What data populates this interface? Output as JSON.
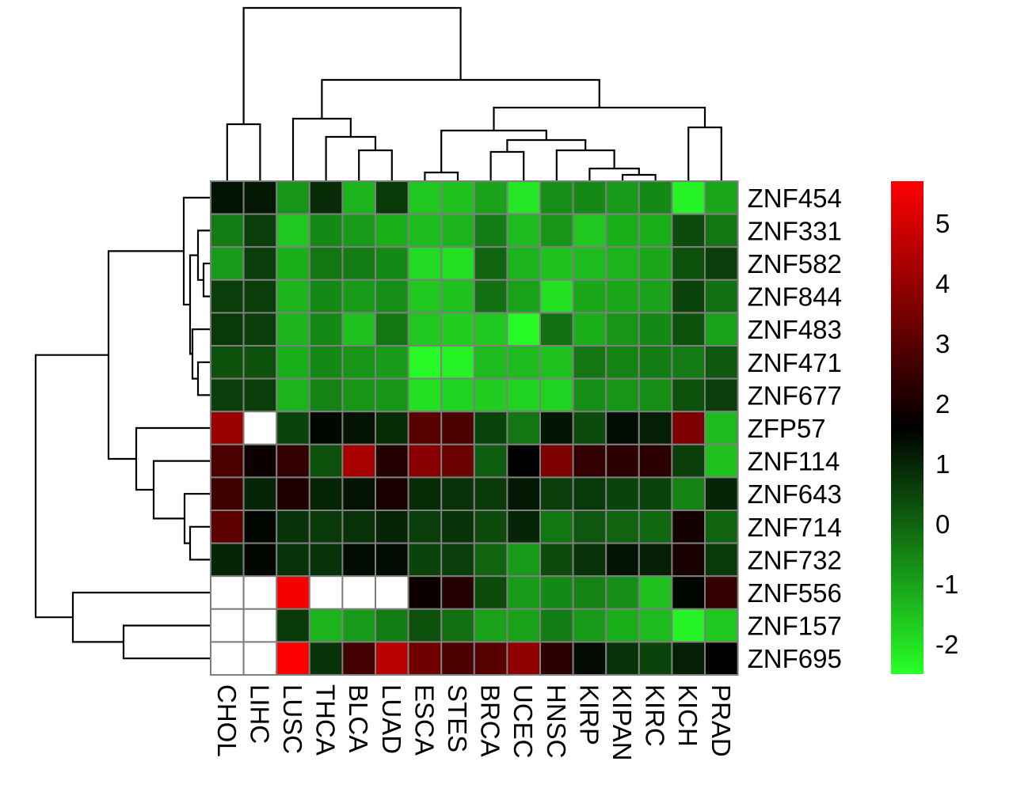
{
  "chart_data": {
    "type": "heatmap",
    "title": "",
    "xlabel": "",
    "ylabel": "",
    "columns": [
      "CHOL",
      "LIHC",
      "LUSC",
      "THCA",
      "BLCA",
      "LUAD",
      "ESCA",
      "STES",
      "BRCA",
      "UCEC",
      "HNSC",
      "KIRP",
      "KIPAN",
      "KIRC",
      "KICH",
      "PRAD"
    ],
    "rows": [
      "ZNF454",
      "ZNF331",
      "ZNF582",
      "ZNF844",
      "ZNF483",
      "ZNF471",
      "ZNF677",
      "ZFP57",
      "ZNF114",
      "ZNF643",
      "ZNF714",
      "ZNF732",
      "ZNF556",
      "ZNF157",
      "ZNF695"
    ],
    "values": [
      [
        1.3,
        1.2,
        -0.8,
        0.9,
        -1.3,
        0.7,
        -1.6,
        -1.5,
        -1.0,
        -2.1,
        -0.7,
        -0.6,
        -0.9,
        -0.6,
        -2.3,
        -1.1
      ],
      [
        -0.4,
        0.6,
        -1.6,
        -0.6,
        -0.9,
        -1.2,
        -1.4,
        -1.3,
        -0.4,
        -1.4,
        -0.8,
        -1.6,
        -1.2,
        -1.2,
        0.4,
        -0.3
      ],
      [
        -0.9,
        0.6,
        -1.2,
        -0.3,
        -0.4,
        -0.6,
        -1.9,
        -2.0,
        0.0,
        -1.3,
        -1.5,
        -1.4,
        -1.3,
        -1.1,
        0.3,
        0.6
      ],
      [
        0.6,
        0.6,
        -1.3,
        -0.6,
        -0.9,
        -0.7,
        -1.6,
        -1.5,
        -0.2,
        -1.0,
        -2.0,
        -1.1,
        -1.1,
        -1.0,
        0.5,
        -0.2
      ],
      [
        0.7,
        0.6,
        -1.3,
        -0.6,
        -1.5,
        -0.3,
        -1.6,
        -1.7,
        -1.6,
        -2.4,
        -0.2,
        -1.2,
        -0.8,
        -0.6,
        0.3,
        -1.0
      ],
      [
        0.3,
        0.3,
        -1.2,
        -0.6,
        -0.8,
        -0.9,
        -2.4,
        -2.3,
        -1.4,
        -1.4,
        -1.5,
        -0.3,
        -0.5,
        -0.4,
        -0.4,
        0.2
      ],
      [
        0.6,
        0.6,
        -1.3,
        -0.5,
        -0.8,
        -0.8,
        -2.0,
        -1.8,
        -1.7,
        -1.8,
        -1.8,
        -0.7,
        -0.8,
        -0.7,
        0.3,
        0.6
      ],
      [
        4.1,
        null,
        0.5,
        1.5,
        1.3,
        0.9,
        3.0,
        2.8,
        0.5,
        -0.3,
        1.3,
        0.4,
        1.4,
        1.1,
        3.6,
        -1.4
      ],
      [
        2.8,
        1.8,
        2.4,
        0.3,
        4.3,
        2.2,
        3.8,
        3.3,
        0.1,
        1.6,
        3.6,
        2.4,
        2.3,
        2.3,
        0.6,
        -1.5
      ],
      [
        2.6,
        1.0,
        2.1,
        1.0,
        1.3,
        2.0,
        0.9,
        0.8,
        0.7,
        1.2,
        0.6,
        0.7,
        0.5,
        0.5,
        -0.5,
        1.0
      ],
      [
        3.1,
        1.5,
        0.8,
        0.7,
        0.8,
        1.0,
        0.6,
        0.8,
        0.4,
        1.0,
        -0.3,
        0.2,
        0.0,
        -0.1,
        1.9,
        0.0
      ],
      [
        1.0,
        1.5,
        0.8,
        0.8,
        1.4,
        1.4,
        0.5,
        0.6,
        0.0,
        -0.9,
        0.4,
        0.8,
        1.3,
        1.1,
        2.0,
        0.7
      ],
      [
        null,
        null,
        5.6,
        null,
        null,
        null,
        1.8,
        2.2,
        0.4,
        -0.9,
        -0.6,
        -0.5,
        -0.7,
        -1.5,
        1.5,
        2.4
      ],
      [
        null,
        null,
        0.7,
        -1.3,
        -0.9,
        -0.4,
        0.3,
        -0.2,
        -1.0,
        -1.0,
        -0.4,
        -0.9,
        -1.2,
        -1.4,
        -2.3,
        -1.6
      ],
      [
        null,
        null,
        5.7,
        0.8,
        2.7,
        4.6,
        3.4,
        2.8,
        3.0,
        3.9,
        2.3,
        1.4,
        0.8,
        0.5,
        1.1,
        1.6
      ]
    ],
    "missing_color": "#ffffff",
    "cell_border_color": "#7f7f7f",
    "colorscale": {
      "min": -2.5,
      "max": 5.7,
      "low_color": "#28ff28",
      "mid_color": "#000000",
      "mid_value": 1.6,
      "high_color": "#ff0000",
      "ticks": [
        5,
        4,
        3,
        2,
        1,
        0,
        -1,
        -2
      ]
    },
    "legend_position": "right",
    "column_dendrogram": true,
    "row_dendrogram": true
  }
}
